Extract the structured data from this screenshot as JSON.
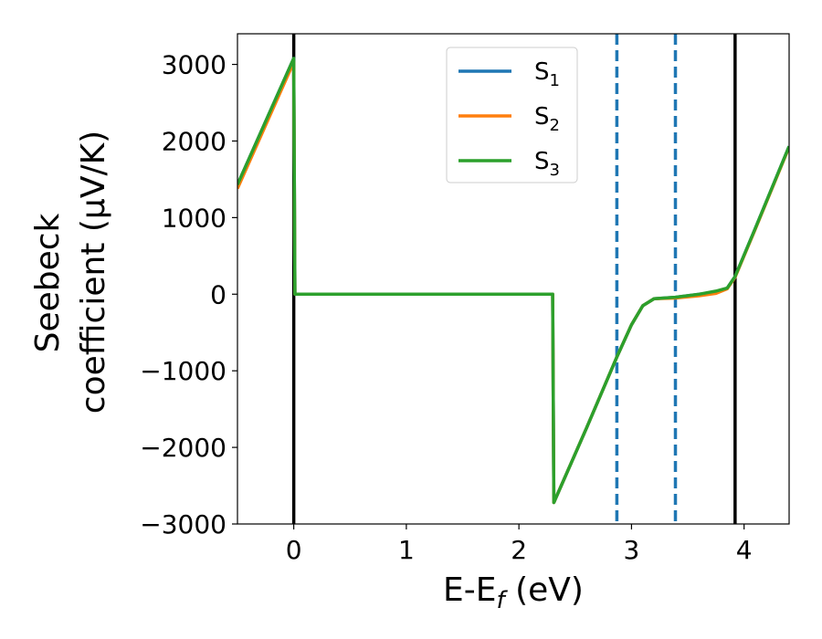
{
  "chart_data": {
    "type": "line",
    "xlabel": "E-E",
    "xlabel_sub": "f",
    "xlabel_unit": " (eV)",
    "ylabel_line1": "Seebeck",
    "ylabel_line2": "coefficient  (μV/K)",
    "xlim": [
      -0.5,
      4.4
    ],
    "ylim": [
      -3000,
      3400
    ],
    "xticks": [
      0,
      1,
      2,
      3,
      4
    ],
    "xtick_labels": [
      "0",
      "1",
      "2",
      "3",
      "4"
    ],
    "yticks": [
      3000,
      2000,
      1000,
      0,
      -1000,
      -2000,
      -3000
    ],
    "ytick_labels": [
      "3000",
      "2000",
      "1000",
      "0",
      "−1000",
      "−2000",
      "−3000"
    ],
    "grid": false,
    "legend_position": "top-center",
    "vertical_lines": [
      {
        "x": 0.0,
        "style": "solid",
        "color": "#000000"
      },
      {
        "x": 3.92,
        "style": "solid",
        "color": "#000000"
      },
      {
        "x": 2.87,
        "style": "dashed",
        "color": "#1f77b4"
      },
      {
        "x": 3.39,
        "style": "dashed",
        "color": "#1f77b4"
      }
    ],
    "series": [
      {
        "name": "S",
        "sub": "1",
        "color": "#1f77b4",
        "x": [
          -0.5,
          0.0,
          0.01,
          2.29,
          2.3,
          2.31,
          2.6,
          2.87,
          3.0,
          3.1,
          3.2,
          3.39,
          3.6,
          3.75,
          3.85,
          3.92,
          4.1,
          4.4
        ],
        "y": [
          1430,
          3080,
          0,
          0,
          0,
          -2720,
          -1750,
          -820,
          -400,
          -150,
          -60,
          -40,
          0,
          20,
          80,
          230,
          860,
          1930
        ]
      },
      {
        "name": "S",
        "sub": "2",
        "color": "#ff7f0e",
        "x": [
          -0.5,
          0.0,
          0.01,
          2.29,
          2.3,
          2.31,
          2.6,
          2.87,
          3.0,
          3.1,
          3.2,
          3.39,
          3.6,
          3.75,
          3.85,
          3.92,
          4.1,
          4.4
        ],
        "y": [
          1380,
          3030,
          0,
          0,
          0,
          -2720,
          -1750,
          -820,
          -400,
          -150,
          -60,
          -50,
          -20,
          10,
          70,
          220,
          850,
          1920
        ]
      },
      {
        "name": "S",
        "sub": "3",
        "color": "#2ca02c",
        "x": [
          -0.5,
          0.0,
          0.01,
          2.29,
          2.3,
          2.31,
          2.6,
          2.87,
          3.0,
          3.1,
          3.2,
          3.39,
          3.6,
          3.75,
          3.85,
          3.92,
          4.1,
          4.4
        ],
        "y": [
          1430,
          3080,
          0,
          0,
          0,
          -2720,
          -1750,
          -820,
          -400,
          -150,
          -60,
          -40,
          0,
          40,
          80,
          230,
          860,
          1930
        ]
      }
    ]
  }
}
